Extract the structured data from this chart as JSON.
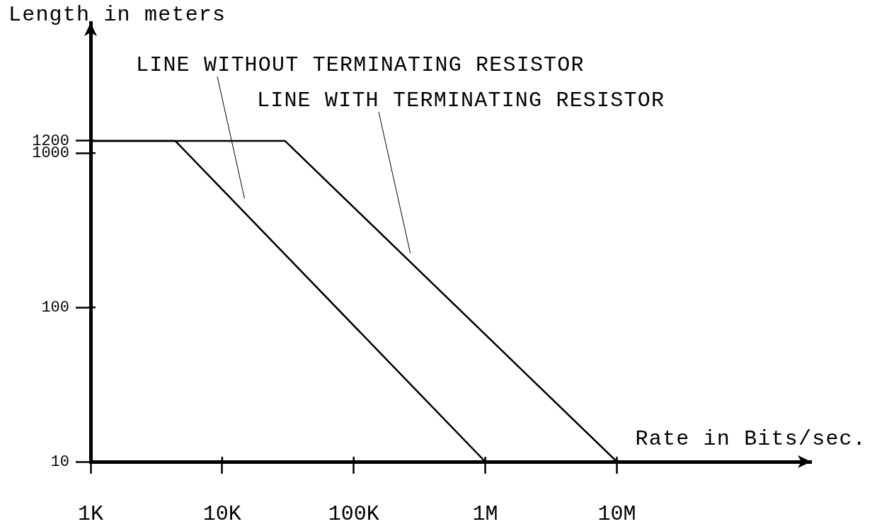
{
  "chart_data": {
    "type": "line",
    "xlabel": "Rate in Bits/sec.",
    "ylabel": "Length in meters",
    "log": "xy",
    "xlim": [
      1000,
      300000000
    ],
    "xticks": [
      {
        "value": 1000,
        "label": "1K"
      },
      {
        "value": 10000,
        "label": "10K"
      },
      {
        "value": 100000,
        "label": "100K"
      },
      {
        "value": 1000000,
        "label": "1M"
      },
      {
        "value": 10000000,
        "label": "10M"
      }
    ],
    "ylim": [
      10,
      7000
    ],
    "yticks": [
      10,
      100,
      1000,
      1200
    ],
    "marker": "none",
    "line_style": "solid",
    "series": [
      {
        "name": "LINE WITHOUT TERMINATING RESISTOR",
        "color": "#000000",
        "x": [
          1000,
          4400,
          1000000
        ],
        "values": [
          1200,
          1200,
          10
        ]
      },
      {
        "name": "LINE WITH TERMINATING RESISTOR",
        "color": "#000000",
        "x": [
          1000,
          30000,
          10000000
        ],
        "values": [
          1200,
          1200,
          10
        ]
      }
    ]
  }
}
